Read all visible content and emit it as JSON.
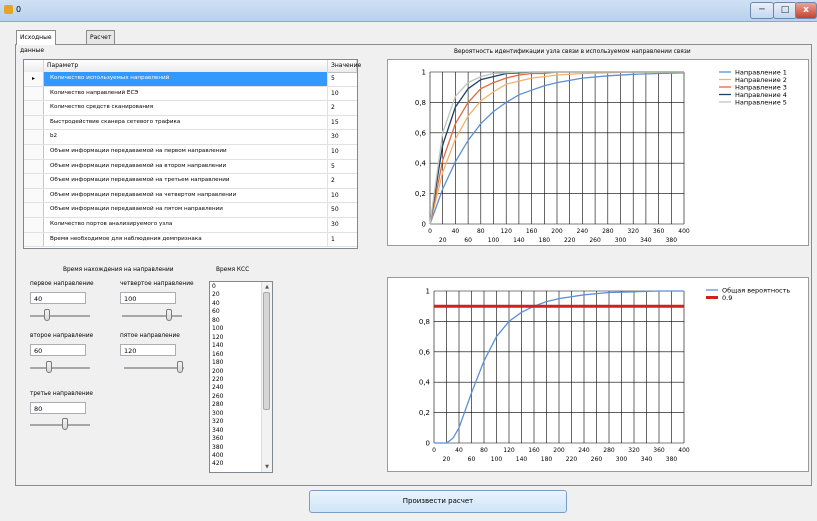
{
  "window": {
    "title": "0",
    "min": "─",
    "max": "□",
    "close": "x"
  },
  "tabs": [
    "Исходные данные",
    "Расчет"
  ],
  "grid": {
    "headers": {
      "param": "Параметр",
      "value": "Значение"
    },
    "row_marker": "▸",
    "rows": [
      {
        "param": "Количество используемых направлений",
        "value": "5"
      },
      {
        "param": "Количество направлений ЕСЭ",
        "value": "10"
      },
      {
        "param": "Количество средств сканирования",
        "value": "2"
      },
      {
        "param": "Быстродействие сканера сетевого трафика",
        "value": "15"
      },
      {
        "param": "b2",
        "value": "30"
      },
      {
        "param": "Объем информации передаваемой на первом направлении",
        "value": "10"
      },
      {
        "param": "Объем информации передаваемой на втором направлении",
        "value": "5"
      },
      {
        "param": "Объем информации передаваемой на третьем направлении",
        "value": "2"
      },
      {
        "param": "Объем информации передаваемой на четвертом направлении",
        "value": "10"
      },
      {
        "param": "Объем информации передаваемой на пятом направлении",
        "value": "50"
      },
      {
        "param": "Количество портов анализируемого узла",
        "value": "30"
      },
      {
        "param": "Время необходимое для наблюдения демпризнака",
        "value": "1"
      }
    ]
  },
  "controls": {
    "group_title": "Время нахождения на направлении",
    "kss_title": "Время КСС",
    "first": {
      "label": "первое направление",
      "value": "40",
      "level": 0.25
    },
    "second": {
      "label": "второе направление",
      "value": "60",
      "level": 0.3
    },
    "third": {
      "label": "третье направление",
      "value": "80",
      "level": 0.6
    },
    "fourth": {
      "label": "четвертое направление",
      "value": "100",
      "level": 0.82
    },
    "fifth": {
      "label": "пятое направление",
      "value": "120",
      "level": 0.98
    },
    "kss_list": [
      "0",
      "20",
      "40",
      "60",
      "80",
      "100",
      "120",
      "140",
      "160",
      "180",
      "200",
      "220",
      "240",
      "260",
      "280",
      "300",
      "320",
      "340",
      "360",
      "380",
      "400",
      "420"
    ],
    "scroll_up": "▲",
    "scroll_down": "▼"
  },
  "button": {
    "calc": "Произвести расчет"
  },
  "charts": [
    {
      "id": "top",
      "title": "Вероятность идентификации узла связи в используемом направлении связи",
      "xlim": [
        0,
        400
      ],
      "ylim": [
        0,
        1
      ],
      "xticks_lower": [
        "0",
        "40",
        "80",
        "120",
        "160",
        "200",
        "240",
        "280",
        "320",
        "360",
        "400"
      ],
      "xticks_upper": [
        "20",
        "60",
        "100",
        "140",
        "180",
        "220",
        "260",
        "300",
        "340",
        "380"
      ],
      "yticks": [
        "0",
        "0,2",
        "0,4",
        "0,6",
        "0,8",
        "1"
      ],
      "legend": [
        {
          "name": "Направление 1",
          "color": "#5b8fd6"
        },
        {
          "name": "Направление 2",
          "color": "#f3b16b"
        },
        {
          "name": "Направление 3",
          "color": "#e06a3b"
        },
        {
          "name": "Направление 4",
          "color": "#1f3f66"
        },
        {
          "name": "Направление 5",
          "color": "#b9c8b9"
        }
      ],
      "chart_data": {
        "type": "line",
        "x": [
          0,
          20,
          40,
          60,
          80,
          100,
          120,
          140,
          160,
          180,
          200,
          240,
          280,
          320,
          360,
          400
        ],
        "series": [
          {
            "name": "Направление 1",
            "values": [
              0,
              0.23,
              0.41,
              0.55,
              0.66,
              0.74,
              0.8,
              0.85,
              0.88,
              0.91,
              0.93,
              0.96,
              0.975,
              0.985,
              0.99,
              0.995
            ]
          },
          {
            "name": "Направление 2",
            "values": [
              0,
              0.34,
              0.56,
              0.71,
              0.81,
              0.87,
              0.92,
              0.94,
              0.96,
              0.97,
              0.98,
              0.99,
              0.995,
              1,
              1,
              1
            ]
          },
          {
            "name": "Направление 3",
            "values": [
              0,
              0.42,
              0.66,
              0.8,
              0.89,
              0.93,
              0.96,
              0.98,
              0.99,
              0.99,
              1,
              1,
              1,
              1,
              1,
              1
            ]
          },
          {
            "name": "Направление 4",
            "values": [
              0,
              0.52,
              0.77,
              0.89,
              0.95,
              0.97,
              0.99,
              0.995,
              1,
              1,
              1,
              1,
              1,
              1,
              1,
              1
            ]
          },
          {
            "name": "Направление 5",
            "values": [
              0,
              0.6,
              0.84,
              0.93,
              0.97,
              0.99,
              0.995,
              1,
              1,
              1,
              1,
              1,
              1,
              1,
              1,
              1
            ]
          }
        ]
      }
    },
    {
      "id": "bottom",
      "title": "",
      "xlim": [
        0,
        400
      ],
      "ylim": [
        0,
        1
      ],
      "xticks_lower": [
        "0",
        "40",
        "80",
        "120",
        "160",
        "200",
        "240",
        "280",
        "320",
        "360",
        "400"
      ],
      "xticks_upper": [
        "20",
        "60",
        "100",
        "140",
        "180",
        "220",
        "260",
        "300",
        "340",
        "380"
      ],
      "yticks": [
        "0",
        "0,2",
        "0,4",
        "0,6",
        "0,8",
        "1"
      ],
      "legend": [
        {
          "name": "Общая вероятность",
          "color": "#5b8fd6"
        },
        {
          "name": "0.9",
          "color": "#d02020"
        }
      ],
      "chart_data": {
        "type": "line",
        "x": [
          0,
          20,
          30,
          40,
          60,
          80,
          100,
          120,
          140,
          160,
          180,
          200,
          240,
          280,
          320,
          360,
          400
        ],
        "series": [
          {
            "name": "Общая вероятность",
            "values": [
              0,
              0.0,
              0.03,
              0.1,
              0.33,
              0.54,
              0.7,
              0.8,
              0.86,
              0.9,
              0.93,
              0.95,
              0.975,
              0.99,
              0.995,
              1,
              1
            ]
          },
          {
            "name": "0.9",
            "values": [
              0.9,
              0.9,
              0.9,
              0.9,
              0.9,
              0.9,
              0.9,
              0.9,
              0.9,
              0.9,
              0.9,
              0.9,
              0.9,
              0.9,
              0.9,
              0.9,
              0.9
            ]
          }
        ]
      }
    }
  ]
}
